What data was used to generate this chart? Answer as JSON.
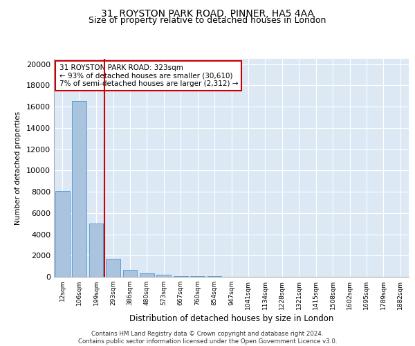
{
  "title1": "31, ROYSTON PARK ROAD, PINNER, HA5 4AA",
  "title2": "Size of property relative to detached houses in London",
  "xlabel": "Distribution of detached houses by size in London",
  "ylabel": "Number of detached properties",
  "categories": [
    "12sqm",
    "106sqm",
    "199sqm",
    "293sqm",
    "386sqm",
    "480sqm",
    "573sqm",
    "667sqm",
    "760sqm",
    "854sqm",
    "947sqm",
    "1041sqm",
    "1134sqm",
    "1228sqm",
    "1321sqm",
    "1415sqm",
    "1508sqm",
    "1602sqm",
    "1695sqm",
    "1789sqm",
    "1882sqm"
  ],
  "values": [
    8050,
    16500,
    5000,
    1700,
    650,
    350,
    180,
    90,
    55,
    35,
    22,
    15,
    10,
    7,
    5,
    4,
    3,
    2,
    2,
    1,
    1
  ],
  "bar_color": "#aac4e0",
  "bar_edge_color": "#5a9fd4",
  "vline_x_index": 3,
  "vline_color": "#cc0000",
  "annotation_text": "31 ROYSTON PARK ROAD: 323sqm\n← 93% of detached houses are smaller (30,610)\n7% of semi-detached houses are larger (2,312) →",
  "annotation_box_color": "#ffffff",
  "annotation_box_edge_color": "#cc0000",
  "ylim": [
    0,
    20500
  ],
  "yticks": [
    0,
    2000,
    4000,
    6000,
    8000,
    10000,
    12000,
    14000,
    16000,
    18000,
    20000
  ],
  "bg_color": "#dde8f5",
  "footer_text": "Contains HM Land Registry data © Crown copyright and database right 2024.\nContains public sector information licensed under the Open Government Licence v3.0.",
  "title_fontsize": 10,
  "subtitle_fontsize": 9
}
